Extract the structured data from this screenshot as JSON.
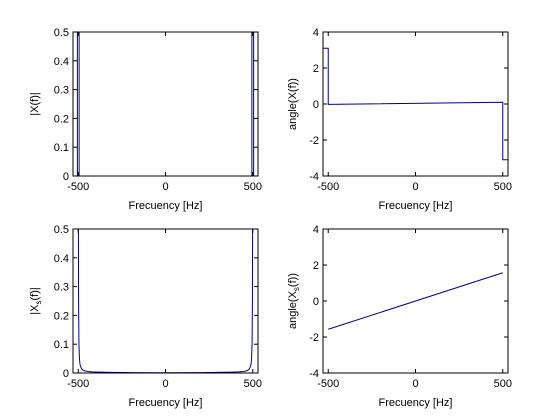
{
  "colors": {
    "line": "#00008B",
    "axis": "#000000",
    "background": "#ffffff"
  },
  "chart_data": [
    {
      "type": "line",
      "xlabel": "Frecuency [Hz]",
      "ylabel": "|X(f)|",
      "xlim": [
        -530,
        530
      ],
      "ylim": [
        0,
        0.5
      ],
      "xticks": [
        -500,
        0,
        500
      ],
      "xtick_labels": [
        "-500",
        "0",
        "500"
      ],
      "yticks": [
        0,
        0.1,
        0.2,
        0.3,
        0.4,
        0.5
      ],
      "ytick_labels": [
        "0",
        "0.1",
        "0.2",
        "0.3",
        "0.4",
        "0.5"
      ],
      "grid": false,
      "series": [
        {
          "x": [
            -530,
            -505,
            -505,
            -495,
            -495,
            0,
            495,
            495,
            505,
            505,
            530
          ],
          "y": [
            0,
            0,
            0.5,
            0.5,
            0,
            0,
            0,
            0.5,
            0.5,
            0,
            0
          ]
        }
      ]
    },
    {
      "type": "line",
      "xlabel": "Frecuency [Hz]",
      "ylabel": "angle(X(f))",
      "xlim": [
        -530,
        530
      ],
      "ylim": [
        -4,
        4
      ],
      "xticks": [
        -500,
        0,
        500
      ],
      "xtick_labels": [
        "-500",
        "0",
        "500"
      ],
      "yticks": [
        -4,
        -2,
        0,
        2,
        4
      ],
      "ytick_labels": [
        "-4",
        "-2",
        "0",
        "2",
        "4"
      ],
      "grid": false,
      "series": [
        {
          "x": [
            -530,
            -500,
            -500,
            500,
            500,
            530
          ],
          "y": [
            3.1,
            3.1,
            -0.02,
            0.1,
            -3.1,
            -3.1
          ]
        }
      ]
    },
    {
      "type": "line",
      "xlabel": "Frecuency [Hz]",
      "ylabel": "|X_s(f)|",
      "ylabel_main": "|X",
      "ylabel_sub": "s",
      "ylabel_tail": "(f)|",
      "xlim": [
        -530,
        530
      ],
      "ylim": [
        0,
        0.5
      ],
      "xticks": [
        -500,
        0,
        500
      ],
      "xtick_labels": [
        "-500",
        "0",
        "500"
      ],
      "yticks": [
        0,
        0.1,
        0.2,
        0.3,
        0.4,
        0.5
      ],
      "ytick_labels": [
        "0",
        "0.1",
        "0.2",
        "0.3",
        "0.4",
        "0.5"
      ],
      "grid": false,
      "series": [
        {
          "x": [
            -499,
            -498,
            -496,
            -493,
            -490,
            -485,
            -478,
            -470,
            -460,
            -445,
            -420,
            -380,
            -300,
            -200,
            0,
            200,
            300,
            380,
            420,
            445,
            460,
            470,
            478,
            485,
            490,
            493,
            496,
            498,
            499
          ],
          "y": [
            0.5,
            0.25,
            0.1,
            0.05,
            0.03,
            0.02,
            0.012,
            0.009,
            0.007,
            0.005,
            0.004,
            0.003,
            0.002,
            0.0015,
            0.001,
            0.0015,
            0.002,
            0.003,
            0.004,
            0.005,
            0.007,
            0.009,
            0.012,
            0.02,
            0.03,
            0.05,
            0.1,
            0.25,
            0.5
          ]
        }
      ]
    },
    {
      "type": "line",
      "xlabel": "Frecuency [Hz]",
      "ylabel": "angle(X_s(f))",
      "ylabel_main": "angle(X",
      "ylabel_sub": "s",
      "ylabel_tail": "(f))",
      "xlim": [
        -530,
        530
      ],
      "ylim": [
        -4,
        4
      ],
      "xticks": [
        -500,
        0,
        500
      ],
      "xtick_labels": [
        "-500",
        "0",
        "500"
      ],
      "yticks": [
        -4,
        -2,
        0,
        2,
        4
      ],
      "ytick_labels": [
        "-4",
        "-2",
        "0",
        "2",
        "4"
      ],
      "grid": false,
      "series": [
        {
          "x": [
            -500,
            500
          ],
          "y": [
            -1.57,
            1.57
          ]
        }
      ]
    }
  ]
}
